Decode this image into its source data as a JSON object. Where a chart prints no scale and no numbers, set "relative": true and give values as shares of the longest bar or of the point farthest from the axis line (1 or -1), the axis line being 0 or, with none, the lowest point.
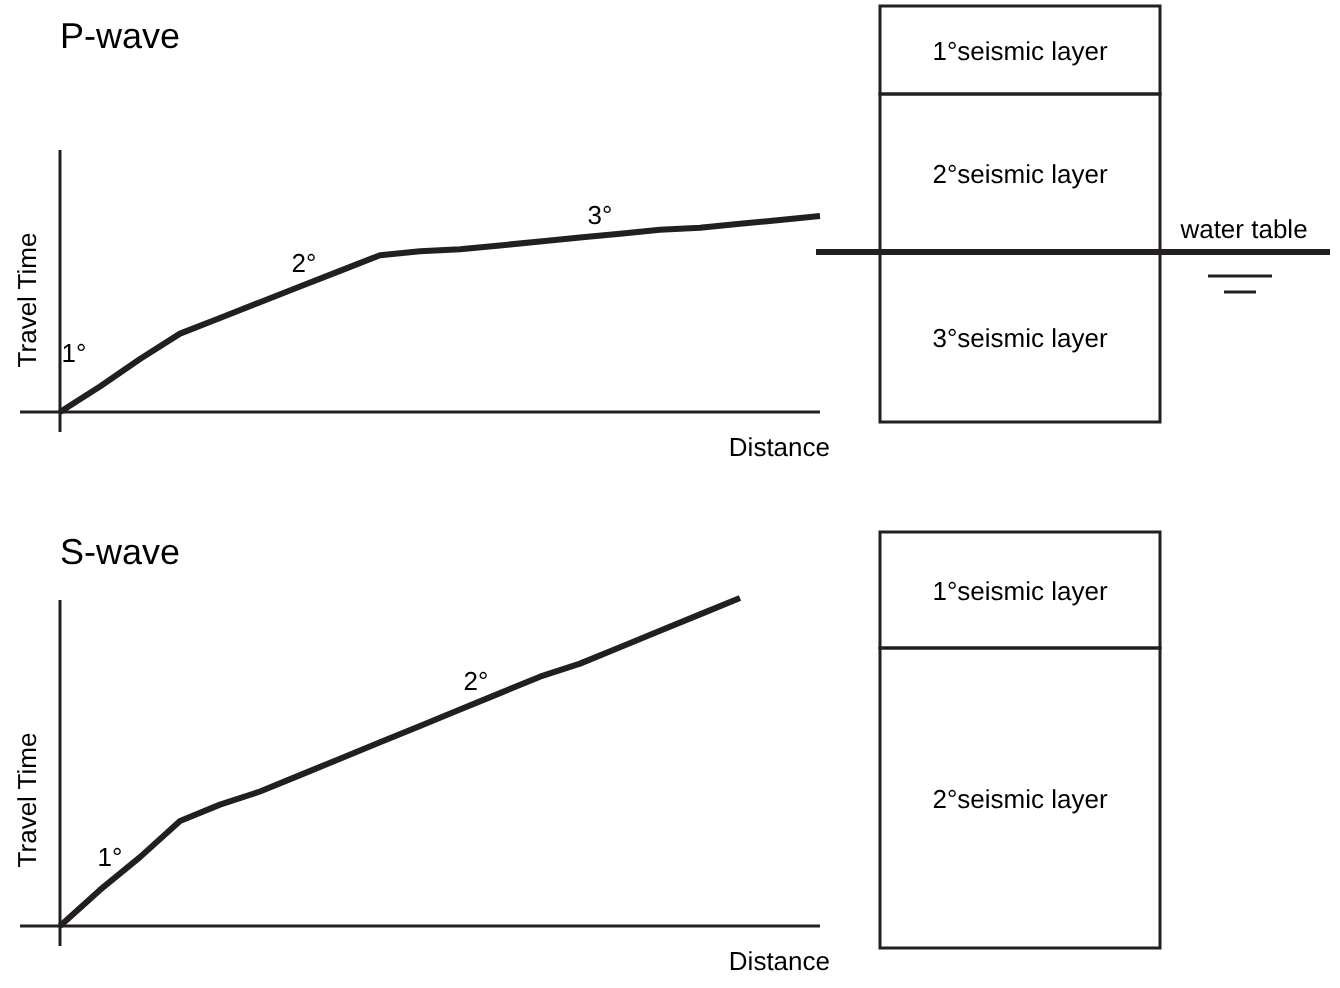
{
  "chart_data": [
    {
      "type": "line",
      "title": "P-wave",
      "xlabel": "Distance",
      "ylabel": "Travel Time",
      "relative": true,
      "categories": [
        null,
        null,
        null,
        null,
        null,
        null,
        null,
        null,
        null,
        null,
        null,
        null,
        null,
        null,
        null,
        null,
        null,
        null,
        null,
        null
      ],
      "values": [
        0,
        0.13,
        0.27,
        0.4,
        0.48,
        0.56,
        0.64,
        0.72,
        0.8,
        0.82,
        0.83,
        0.85,
        0.87,
        0.89,
        0.91,
        0.93,
        0.94,
        0.96,
        0.98,
        1
      ],
      "color": "#231f20",
      "annotations": [
        "1°",
        "2°",
        "3°"
      ]
    },
    {
      "type": "other",
      "categories": [
        "1°seismic layer",
        "2°seismic layer",
        "3°seismic layer"
      ],
      "annotations": [
        "water table"
      ]
    },
    {
      "type": "line",
      "title": "S-wave",
      "xlabel": "Distance",
      "ylabel": "Travel Time",
      "relative": true,
      "categories": [
        null,
        null,
        null,
        null,
        null,
        null,
        null,
        null,
        null,
        null,
        null,
        null,
        null,
        null,
        null,
        null,
        null,
        null
      ],
      "values": [
        0,
        0.11,
        0.21,
        0.32,
        0.37,
        0.41,
        0.46,
        0.51,
        0.56,
        0.61,
        0.66,
        0.71,
        0.76,
        0.8,
        0.85,
        0.9,
        0.95,
        1
      ],
      "color": "#231f20",
      "annotations": [
        "1°",
        "2°"
      ]
    },
    {
      "type": "other",
      "categories": [
        "1°seismic layer",
        "2°seismic layer"
      ]
    }
  ]
}
